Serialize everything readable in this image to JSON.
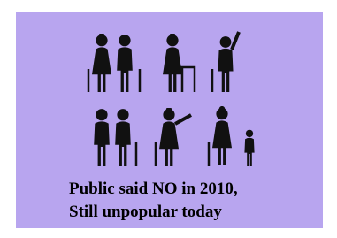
{
  "caption": {
    "lines": [
      "Public said NO in 2010,",
      "Still unpopular today"
    ]
  }
}
